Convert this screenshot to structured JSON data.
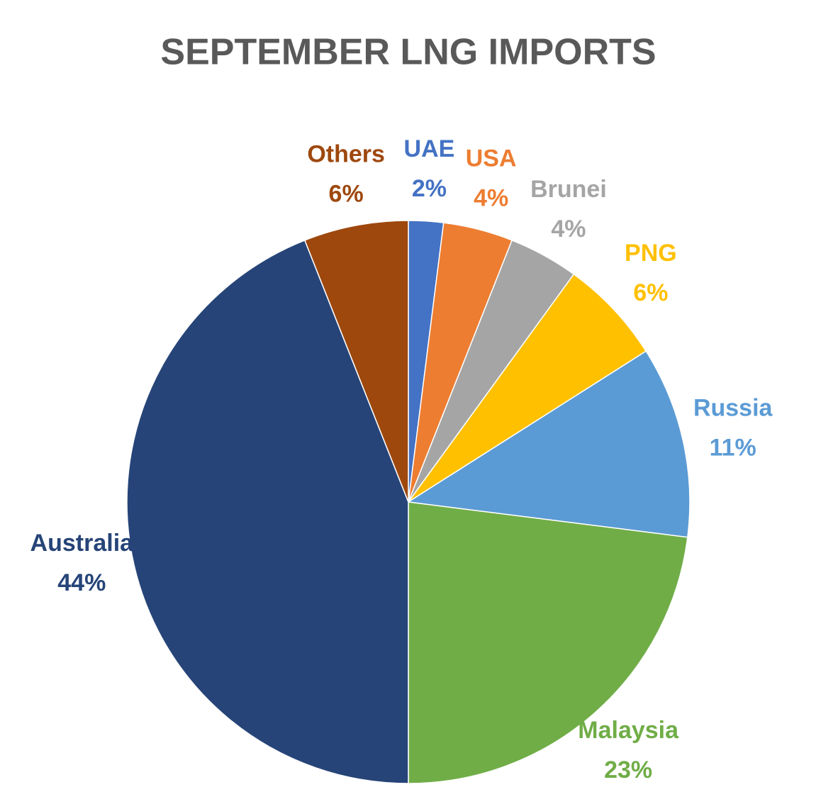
{
  "chart_data": {
    "type": "pie",
    "title": "SEPTEMBER LNG IMPORTS",
    "categories": [
      "UAE",
      "USA",
      "Brunei",
      "PNG",
      "Russia",
      "Malaysia",
      "Australia",
      "Others"
    ],
    "values": [
      2,
      4,
      4,
      6,
      11,
      23,
      44,
      6
    ],
    "value_labels": [
      "2%",
      "4%",
      "4%",
      "6%",
      "11%",
      "23%",
      "44%",
      "6%"
    ],
    "colors": [
      "#4472c4",
      "#ed7d31",
      "#a5a5a5",
      "#ffc000",
      "#5b9bd5",
      "#70ad47",
      "#264478",
      "#9e480e"
    ]
  }
}
